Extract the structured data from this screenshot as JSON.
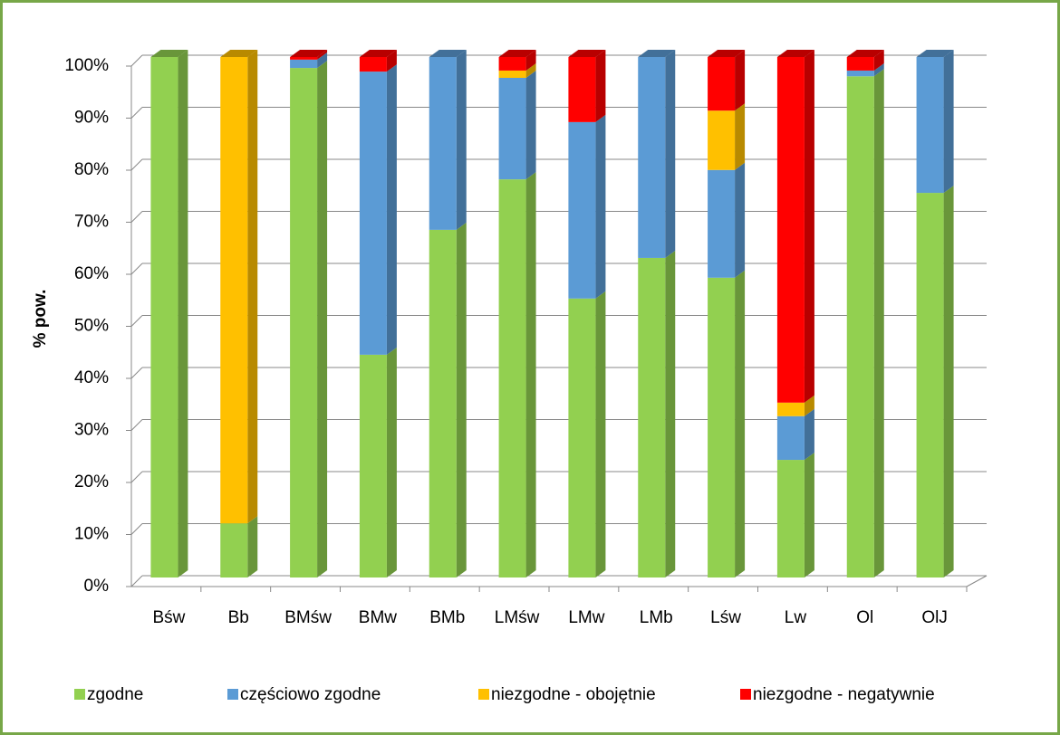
{
  "chart_data": {
    "type": "bar3d_stacked",
    "ylabel": "% pow.",
    "categories": [
      "Bśw",
      "Bb",
      "BMśw",
      "BMw",
      "BMb",
      "LMśw",
      "LMw",
      "LMb",
      "Lśw",
      "Lw",
      "Ol",
      "OlJ"
    ],
    "series": [
      {
        "name": "zgodne",
        "color": "#92d050",
        "values": [
          100,
          10.4,
          97.9,
          42.8,
          66.8,
          76.5,
          53.6,
          61.4,
          57.6,
          22.6,
          96.3,
          73.9
        ]
      },
      {
        "name": "częściowo zgodne",
        "color": "#5b9bd5",
        "values": [
          0,
          0,
          1.6,
          54.4,
          33.2,
          19.5,
          33.9,
          38.6,
          20.7,
          8.4,
          1.1,
          26.1
        ]
      },
      {
        "name": "niezgodne - obojętnie",
        "color": "#ffc000",
        "values": [
          0,
          89.6,
          0,
          0,
          0,
          1.4,
          0,
          0,
          11.4,
          2.6,
          0,
          0
        ]
      },
      {
        "name": "niezgodne - negatywnie",
        "color": "#ff0000",
        "values": [
          0,
          0,
          0.5,
          2.8,
          0,
          2.6,
          12.5,
          0,
          10.3,
          66.4,
          2.6,
          0
        ]
      }
    ],
    "ylim": [
      0,
      100
    ],
    "yticks": [
      {
        "value": 0,
        "label": "0%"
      },
      {
        "value": 10,
        "label": "10%"
      },
      {
        "value": 20,
        "label": "20%"
      },
      {
        "value": 30,
        "label": "30%"
      },
      {
        "value": 40,
        "label": "40%"
      },
      {
        "value": 50,
        "label": "50%"
      },
      {
        "value": 60,
        "label": "60%"
      },
      {
        "value": 70,
        "label": "70%"
      },
      {
        "value": 80,
        "label": "80%"
      },
      {
        "value": 90,
        "label": "90%"
      },
      {
        "value": 100,
        "label": "100%"
      }
    ],
    "grid": true,
    "legend": "bottom"
  }
}
